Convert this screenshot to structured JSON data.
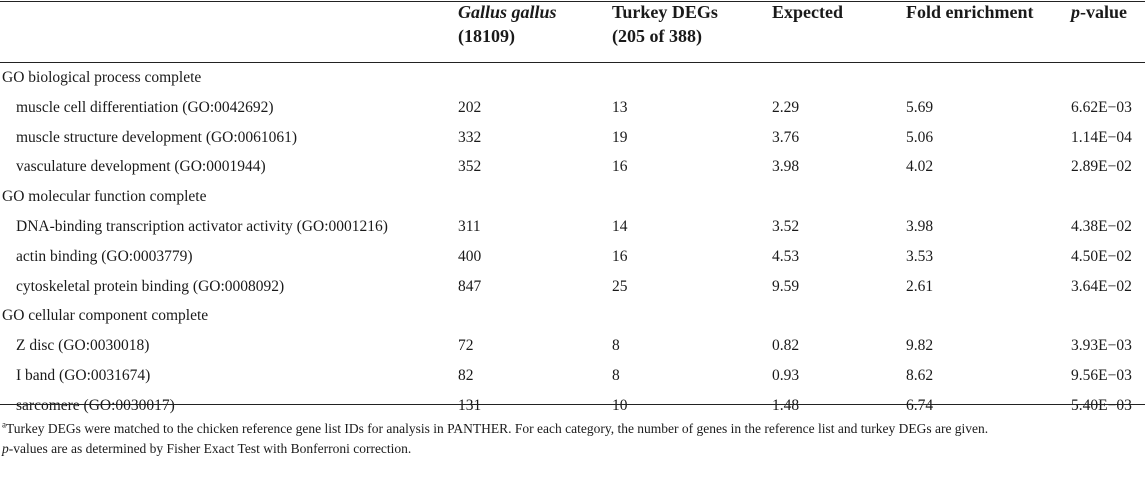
{
  "header": {
    "col1_line1": "Gallus gallus",
    "col1_line2": "(18109)",
    "col2_line1": "Turkey DEGs",
    "col2_line2": "(205 of 388)",
    "col3": "Expected",
    "col4": "Fold enrichment",
    "col5_italic": "p",
    "col5_rest": "-value"
  },
  "rows": [
    {
      "type": "section",
      "label": "GO biological process complete"
    },
    {
      "type": "data",
      "label": "muscle cell differentiation (GO:0042692)",
      "gallus": "202",
      "turkey": "13",
      "expected": "2.29",
      "fold": "5.69",
      "pvalue": "6.62E−03"
    },
    {
      "type": "data",
      "label": "muscle structure development (GO:0061061)",
      "gallus": "332",
      "turkey": "19",
      "expected": "3.76",
      "fold": "5.06",
      "pvalue": "1.14E−04"
    },
    {
      "type": "data",
      "label": "vasculature development (GO:0001944)",
      "gallus": "352",
      "turkey": "16",
      "expected": "3.98",
      "fold": "4.02",
      "pvalue": "2.89E−02"
    },
    {
      "type": "section",
      "label": "GO molecular function complete"
    },
    {
      "type": "data",
      "label": "DNA-binding transcription activator activity (GO:0001216)",
      "gallus": "311",
      "turkey": "14",
      "expected": "3.52",
      "fold": "3.98",
      "pvalue": "4.38E−02"
    },
    {
      "type": "data",
      "label": "actin binding (GO:0003779)",
      "gallus": "400",
      "turkey": "16",
      "expected": "4.53",
      "fold": "3.53",
      "pvalue": "4.50E−02"
    },
    {
      "type": "data",
      "label": "cytoskeletal protein binding (GO:0008092)",
      "gallus": "847",
      "turkey": "25",
      "expected": "9.59",
      "fold": "2.61",
      "pvalue": "3.64E−02"
    },
    {
      "type": "section",
      "label": "GO cellular component complete"
    },
    {
      "type": "data",
      "label": "Z disc (GO:0030018)",
      "gallus": "72",
      "turkey": "8",
      "expected": "0.82",
      "fold": "9.82",
      "pvalue": "3.93E−03"
    },
    {
      "type": "data",
      "label": "I band (GO:0031674)",
      "gallus": "82",
      "turkey": "8",
      "expected": "0.93",
      "fold": "8.62",
      "pvalue": "9.56E−03"
    },
    {
      "type": "data",
      "label": "sarcomere (GO:0030017)",
      "gallus": "131",
      "turkey": "10",
      "expected": "1.48",
      "fold": "6.74",
      "pvalue": "5.40E−03"
    }
  ],
  "footnote": {
    "marker": "a",
    "line1": "Turkey DEGs were matched to the chicken reference gene list IDs for analysis in PANTHER. For each category, the number of genes in the reference list and turkey DEGs are given.",
    "line2_italic": "p",
    "line2_rest": "-values are as determined by Fisher Exact Test with Bonferroni correction."
  }
}
